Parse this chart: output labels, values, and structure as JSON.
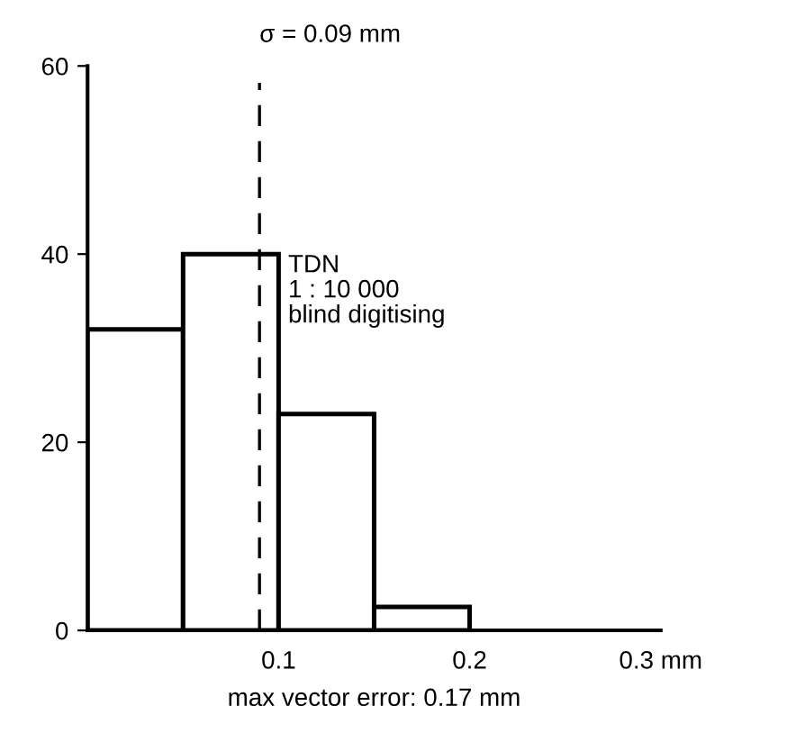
{
  "chart_data": {
    "type": "histogram",
    "bins": [
      0,
      0.05,
      0.1,
      0.15,
      0.2
    ],
    "values": [
      32,
      40,
      23,
      2.5
    ],
    "color": "#ffffff",
    "xlim": [
      0,
      0.3
    ],
    "xticks": [
      0.1,
      0.2,
      {
        "value": 0.3,
        "label": "0.3 mm"
      }
    ],
    "ylim": [
      0,
      60
    ],
    "yticks": [
      0,
      20,
      40,
      60
    ],
    "grid": false,
    "ref_lines": [
      {
        "axis": "x",
        "value": 0.09,
        "label": "σ = 0.09 mm",
        "line_style": "dashed",
        "color": "#000000"
      }
    ],
    "annotations": [
      {
        "text": "TDN\n1 : 10 000\nblind digitising",
        "x": 0.1,
        "y": 40
      },
      "max vector error: 0.17 mm"
    ]
  }
}
